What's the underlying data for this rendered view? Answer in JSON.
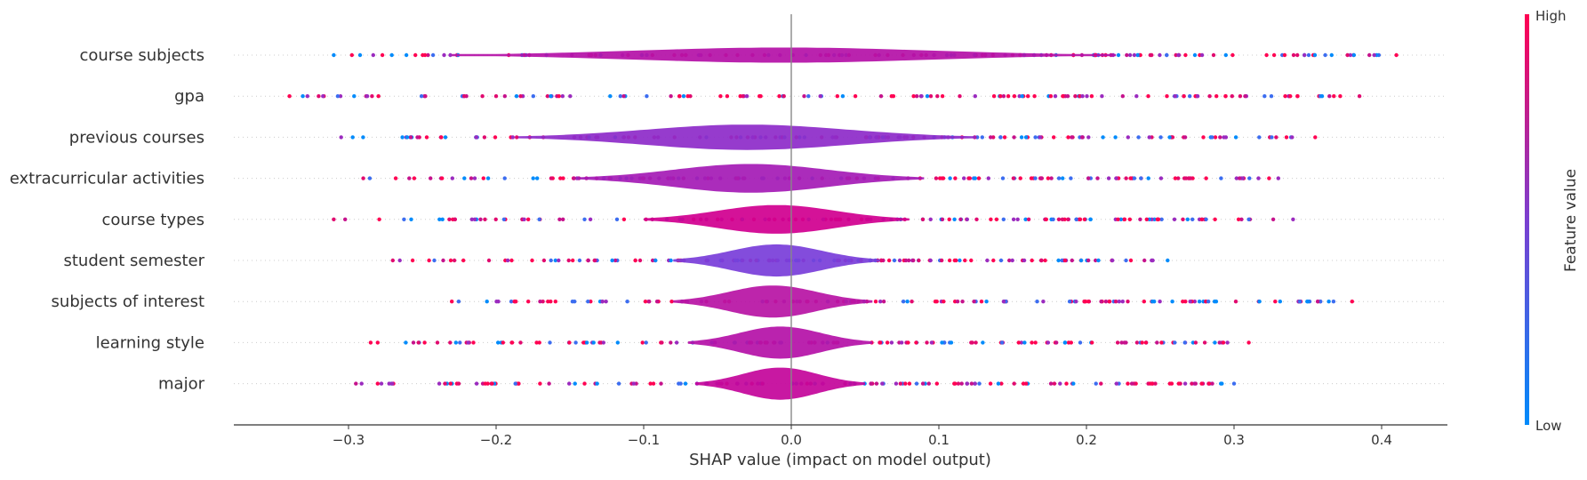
{
  "chart_data": {
    "type": "violin",
    "title": "",
    "xlabel": "SHAP value (impact on model output)",
    "ylabel": "",
    "xlim": [
      -0.38,
      0.445
    ],
    "xticks": [
      -0.3,
      -0.2,
      -0.1,
      0.0,
      0.1,
      0.2,
      0.3,
      0.4
    ],
    "xtick_labels": [
      "−0.3",
      "−0.2",
      "−0.1",
      "0.0",
      "0.1",
      "0.2",
      "0.3",
      "0.4"
    ],
    "features": [
      {
        "name": "course subjects",
        "min": -0.31,
        "max": 0.41,
        "body": [
          -0.23,
          0.22
        ],
        "spread": 0.45
      },
      {
        "name": "gpa",
        "min": -0.34,
        "max": 0.385,
        "body": [
          -0.2,
          0.2
        ],
        "spread": 0.0
      },
      {
        "name": "previous courses",
        "min": -0.305,
        "max": 0.355,
        "body": [
          -0.185,
          0.125
        ],
        "spread": 0.75
      },
      {
        "name": "extracurricular activities",
        "min": -0.29,
        "max": 0.33,
        "body": [
          -0.145,
          0.09
        ],
        "spread": 0.85
      },
      {
        "name": "course types",
        "min": -0.31,
        "max": 0.34,
        "body": [
          -0.1,
          0.08
        ],
        "spread": 0.85
      },
      {
        "name": "student semester",
        "min": -0.27,
        "max": 0.255,
        "body": [
          -0.08,
          0.06
        ],
        "spread": 0.95
      },
      {
        "name": "subjects of interest",
        "min": -0.23,
        "max": 0.38,
        "body": [
          -0.08,
          0.055
        ],
        "spread": 0.95
      },
      {
        "name": "learning style",
        "min": -0.285,
        "max": 0.31,
        "body": [
          -0.07,
          0.055
        ],
        "spread": 0.95
      },
      {
        "name": "major",
        "min": -0.295,
        "max": 0.3,
        "body": [
          -0.065,
          0.05
        ],
        "spread": 0.95
      }
    ],
    "colorbar": {
      "label": "Feature value",
      "high_label": "High",
      "low_label": "Low",
      "high_color": "#ff0052",
      "low_color": "#008bfb"
    },
    "grid": false,
    "legend": "colorbar-right"
  }
}
